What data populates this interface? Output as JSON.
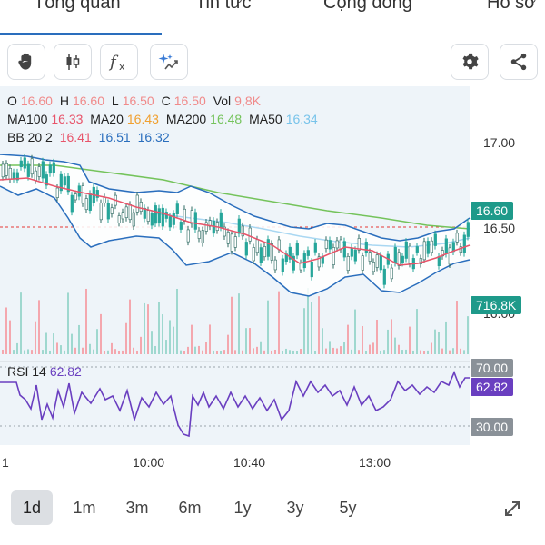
{
  "tabs": [
    {
      "label": "Tổng quan",
      "active": true
    },
    {
      "label": "Tin tức"
    },
    {
      "label": "Cộng đồng"
    },
    {
      "label": "Hồ sơ"
    }
  ],
  "toolbar": {
    "tools": [
      "hand-icon",
      "candlestick-icon",
      "function-icon",
      "sparkle-draw-icon"
    ],
    "actions": [
      "gear-icon",
      "share-icon"
    ]
  },
  "ohlc": {
    "o_label": "O",
    "o": "16.60",
    "h_label": "H",
    "h": "16.60",
    "l_label": "L",
    "l": "16.50",
    "c_label": "C",
    "c": "16.50",
    "vol_label": "Vol",
    "vol": "9,8K"
  },
  "ma": {
    "ma100_label": "MA100",
    "ma100": "16.33",
    "ma20_label": "MA20",
    "ma20": "16.43",
    "ma200_label": "MA200",
    "ma200": "16.48",
    "ma50_label": "MA50",
    "ma50": "16.34"
  },
  "bb": {
    "label": "BB 20 2",
    "lower": "16.41",
    "mid": "16.51",
    "upper": "16.32"
  },
  "rsi": {
    "label": "RSI 14",
    "value": "62.82",
    "upper": "70.00",
    "lower": "30.00"
  },
  "price_axis": {
    "tick_17": "17.00",
    "tick_1650": "16.50",
    "tick_16_partial": "16.00"
  },
  "last_price_badge": "16.60",
  "volume_badge": "716.8K",
  "time_axis": [
    "1",
    "10:00",
    "10:40",
    "13:00"
  ],
  "ranges": [
    {
      "label": "1d",
      "active": true
    },
    {
      "label": "1m"
    },
    {
      "label": "3m"
    },
    {
      "label": "6m"
    },
    {
      "label": "1y"
    },
    {
      "label": "3y"
    },
    {
      "label": "5y"
    }
  ],
  "colors": {
    "up": "#26a69a",
    "down": "#2e6a62",
    "bb": "#2a6ebd",
    "ma20": "#e8546a",
    "ma200": "#74c35b",
    "ma50": "#a9d7f2",
    "rsi": "#6a3fc0",
    "last_price": "#1e9a8a"
  },
  "chart_data": {
    "type": "line",
    "price_ylim": [
      15.8,
      17.1
    ],
    "price_ticks": [
      17.0,
      16.5
    ],
    "rsi_ylim": [
      20,
      80
    ],
    "rsi_levels": [
      70,
      30
    ],
    "x_ticks": [
      "10:00",
      "10:40",
      "13:00"
    ],
    "last_close": 16.6,
    "rsi_last": 62.82,
    "volume_last": "716.8K"
  }
}
